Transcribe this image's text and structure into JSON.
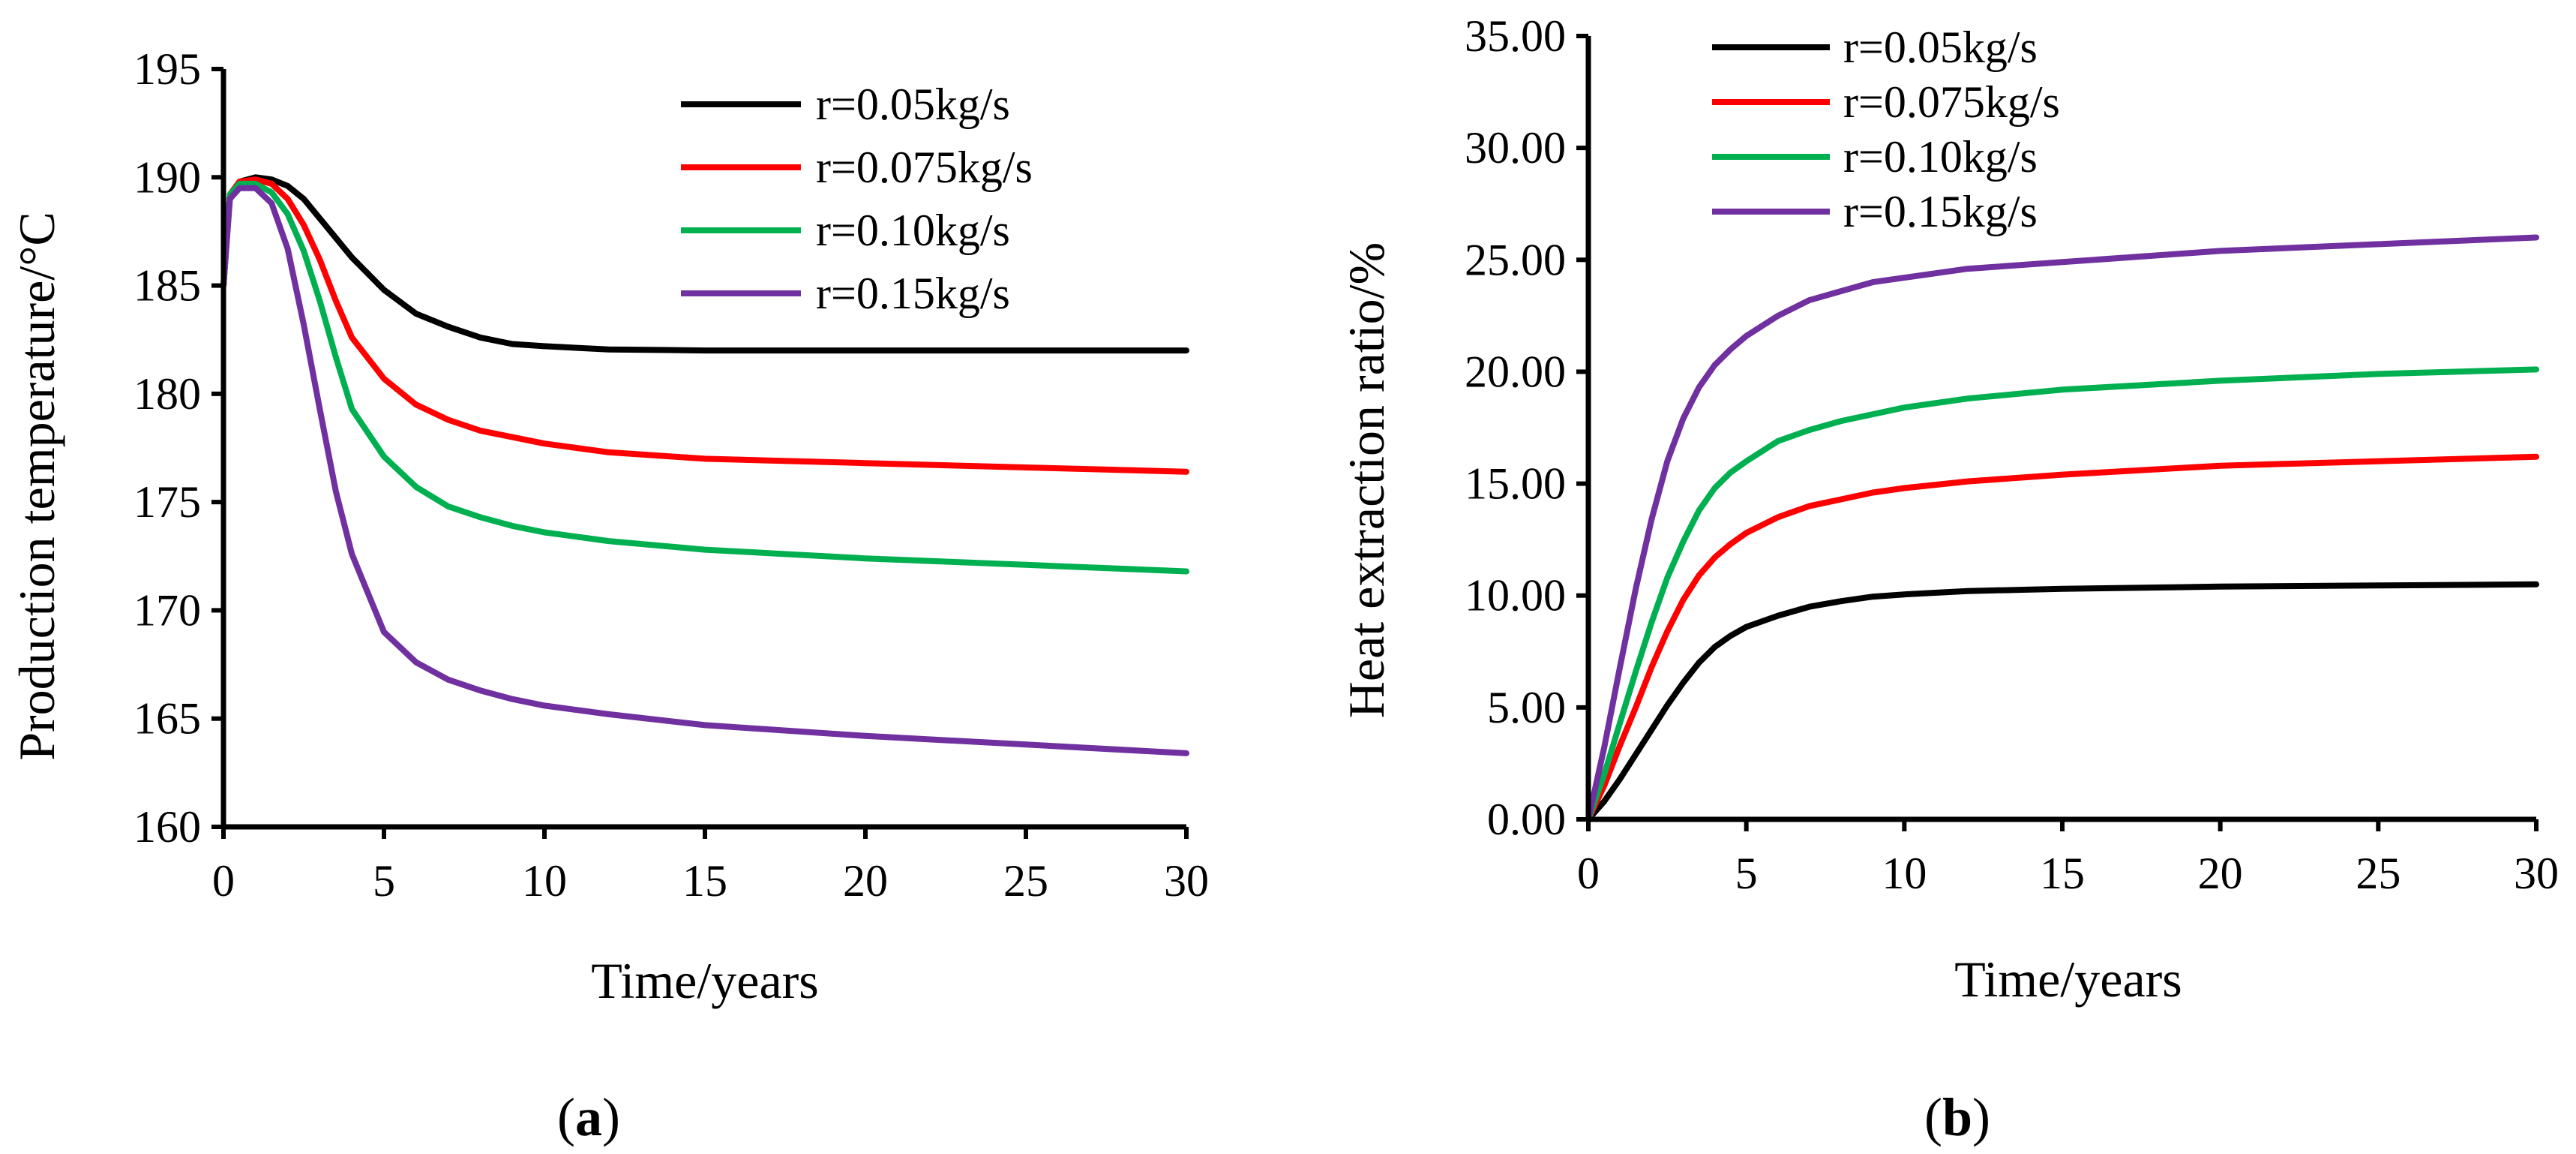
{
  "chart_data": [
    {
      "type": "line",
      "panel": "a",
      "panel_label": "(a)",
      "title": "",
      "xlabel": "Time/years",
      "ylabel": "Production temperature/°C",
      "xlim": [
        0,
        30
      ],
      "ylim": [
        160,
        195
      ],
      "xticks": [
        0,
        5,
        10,
        15,
        20,
        25,
        30
      ],
      "yticks": [
        160,
        165,
        170,
        175,
        180,
        185,
        190,
        195
      ],
      "xtick_labels": [
        "0",
        "5",
        "10",
        "15",
        "20",
        "25",
        "30"
      ],
      "ytick_labels": [
        "160",
        "165",
        "170",
        "175",
        "180",
        "185",
        "190",
        "195"
      ],
      "legend_position": "top-right",
      "grid": false,
      "series": [
        {
          "name": "r=0.05kg/s",
          "color": "#000000",
          "x": [
            0,
            0.2,
            0.5,
            1,
            1.5,
            2,
            2.5,
            3,
            3.5,
            4,
            5,
            6,
            7,
            8,
            9,
            10,
            12,
            15,
            20,
            25,
            30
          ],
          "y": [
            185.0,
            189.2,
            189.8,
            190.0,
            189.9,
            189.6,
            189.0,
            188.1,
            187.2,
            186.3,
            184.8,
            183.7,
            183.1,
            182.6,
            182.3,
            182.2,
            182.05,
            182.0,
            182.0,
            182.0,
            182.0
          ]
        },
        {
          "name": "r=0.075kg/s",
          "color": "#ff0000",
          "x": [
            0,
            0.2,
            0.5,
            1,
            1.5,
            2,
            2.5,
            3,
            3.5,
            4,
            5,
            6,
            7,
            8,
            9,
            10,
            12,
            15,
            20,
            25,
            30
          ],
          "y": [
            185.0,
            189.2,
            189.8,
            189.9,
            189.7,
            189.0,
            187.8,
            186.2,
            184.3,
            182.6,
            180.7,
            179.5,
            178.8,
            178.3,
            178.0,
            177.7,
            177.3,
            177.0,
            176.8,
            176.6,
            176.4
          ]
        },
        {
          "name": "r=0.10kg/s",
          "color": "#00b050",
          "x": [
            0,
            0.2,
            0.5,
            1,
            1.5,
            2,
            2.5,
            3,
            3.5,
            4,
            5,
            6,
            7,
            8,
            9,
            10,
            12,
            15,
            20,
            25,
            30
          ],
          "y": [
            185.0,
            189.2,
            189.7,
            189.7,
            189.3,
            188.3,
            186.6,
            184.3,
            181.7,
            179.3,
            177.1,
            175.7,
            174.8,
            174.3,
            173.9,
            173.6,
            173.2,
            172.8,
            172.4,
            172.1,
            171.8
          ]
        },
        {
          "name": "r=0.15kg/s",
          "color": "#7030a0",
          "x": [
            0,
            0.2,
            0.5,
            1,
            1.5,
            2,
            2.5,
            3,
            3.5,
            4,
            5,
            6,
            7,
            8,
            9,
            10,
            12,
            15,
            20,
            25,
            30
          ],
          "y": [
            185.0,
            189.0,
            189.5,
            189.5,
            188.8,
            186.7,
            183.2,
            179.3,
            175.5,
            172.6,
            169.0,
            167.6,
            166.8,
            166.3,
            165.9,
            165.6,
            165.2,
            164.7,
            164.2,
            163.8,
            163.4
          ]
        }
      ]
    },
    {
      "type": "line",
      "panel": "b",
      "panel_label": "(b)",
      "title": "",
      "xlabel": "Time/years",
      "ylabel": "Heat extraction ratio/%",
      "xlim": [
        0,
        30
      ],
      "ylim": [
        0,
        35
      ],
      "xticks": [
        0,
        5,
        10,
        15,
        20,
        25,
        30
      ],
      "yticks": [
        0,
        5,
        10,
        15,
        20,
        25,
        30,
        35
      ],
      "xtick_labels": [
        "0",
        "5",
        "10",
        "15",
        "20",
        "25",
        "30"
      ],
      "ytick_labels": [
        "0.00",
        "5.00",
        "10.00",
        "15.00",
        "20.00",
        "25.00",
        "30.00",
        "35.00"
      ],
      "legend_position": "top-left",
      "grid": false,
      "series": [
        {
          "name": "r=0.05kg/s",
          "color": "#000000",
          "x": [
            0,
            0.5,
            1,
            1.5,
            2,
            2.5,
            3,
            3.5,
            4,
            4.5,
            5,
            6,
            7,
            8,
            9,
            10,
            12,
            15,
            20,
            25,
            30
          ],
          "y": [
            0,
            0.8,
            1.8,
            2.9,
            4.0,
            5.1,
            6.1,
            7.0,
            7.7,
            8.2,
            8.6,
            9.1,
            9.5,
            9.75,
            9.95,
            10.05,
            10.2,
            10.3,
            10.4,
            10.45,
            10.5
          ]
        },
        {
          "name": "r=0.075kg/s",
          "color": "#ff0000",
          "x": [
            0,
            0.5,
            1,
            1.5,
            2,
            2.5,
            3,
            3.5,
            4,
            4.5,
            5,
            6,
            7,
            8,
            9,
            10,
            12,
            15,
            20,
            25,
            30
          ],
          "y": [
            0,
            1.5,
            3.3,
            5.0,
            6.8,
            8.4,
            9.8,
            10.9,
            11.7,
            12.3,
            12.8,
            13.5,
            14.0,
            14.3,
            14.6,
            14.8,
            15.1,
            15.4,
            15.8,
            16.0,
            16.2
          ]
        },
        {
          "name": "r=0.10kg/s",
          "color": "#00b050",
          "x": [
            0,
            0.5,
            1,
            1.5,
            2,
            2.5,
            3,
            3.5,
            4,
            4.5,
            5,
            6,
            7,
            8,
            9,
            10,
            12,
            15,
            20,
            25,
            30
          ],
          "y": [
            0,
            2.0,
            4.3,
            6.6,
            8.8,
            10.8,
            12.4,
            13.8,
            14.8,
            15.5,
            16.0,
            16.9,
            17.4,
            17.8,
            18.1,
            18.4,
            18.8,
            19.2,
            19.6,
            19.9,
            20.1
          ]
        },
        {
          "name": "r=0.15kg/s",
          "color": "#7030a0",
          "x": [
            0,
            0.5,
            1,
            1.5,
            2,
            2.5,
            3,
            3.5,
            4,
            4.5,
            5,
            6,
            7,
            8,
            9,
            10,
            12,
            15,
            20,
            25,
            30
          ],
          "y": [
            0,
            3.2,
            6.8,
            10.3,
            13.4,
            16.0,
            17.9,
            19.3,
            20.3,
            21.0,
            21.6,
            22.5,
            23.2,
            23.6,
            24.0,
            24.2,
            24.6,
            24.9,
            25.4,
            25.7,
            26.0
          ]
        }
      ]
    }
  ]
}
